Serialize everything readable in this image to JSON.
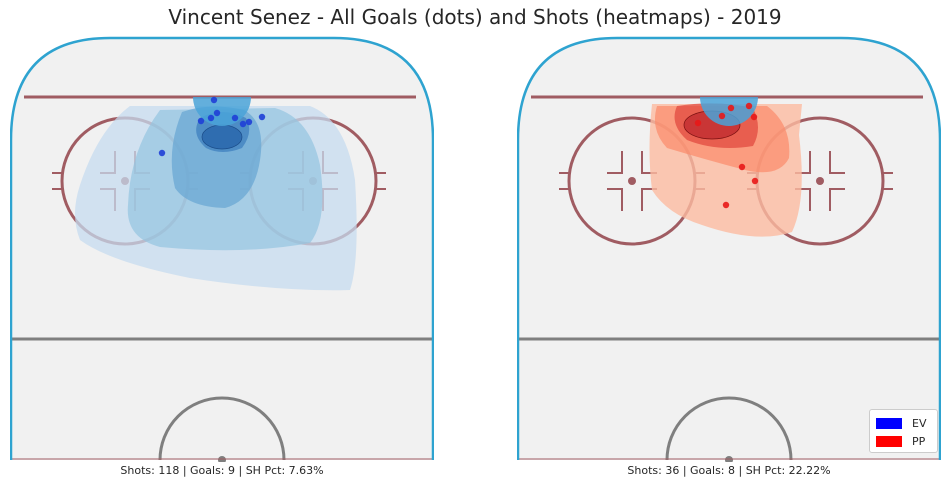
{
  "title": "Vincent Senez - All Goals (dots) and Shots (heatmaps) - 2019",
  "colors": {
    "ice": "#f1f1f1",
    "boards": "#2ea3d0",
    "goal_line": "#a05c62",
    "blue_line": "#7f7f7f",
    "ev": "#0000ff",
    "pp": "#ff0000"
  },
  "legend": [
    {
      "label": "EV",
      "color": "#0000ff"
    },
    {
      "label": "PP",
      "color": "#ff0000"
    }
  ],
  "chart_data": [
    {
      "type": "scatter",
      "panel": "left",
      "strength": "EV",
      "caption": "Shots: 118 | Goals: 9 | SH Pct: 7.63%",
      "shots": 118,
      "goals": 9,
      "sh_pct": 7.63,
      "goal_points": [
        {
          "x": 204,
          "y": 100
        },
        {
          "x": 201,
          "y": 118
        },
        {
          "x": 207,
          "y": 113
        },
        {
          "x": 225,
          "y": 118
        },
        {
          "x": 239,
          "y": 122
        },
        {
          "x": 252,
          "y": 117
        },
        {
          "x": 233,
          "y": 124
        },
        {
          "x": 191,
          "y": 121
        },
        {
          "x": 152,
          "y": 153
        }
      ]
    },
    {
      "type": "scatter",
      "panel": "right",
      "strength": "PP",
      "caption": "Shots: 36 | Goals: 8 | SH Pct: 22.22%",
      "shots": 36,
      "goals": 8,
      "sh_pct": 22.22,
      "goal_points": [
        {
          "x": 214,
          "y": 108
        },
        {
          "x": 205,
          "y": 116
        },
        {
          "x": 232,
          "y": 106
        },
        {
          "x": 237,
          "y": 117
        },
        {
          "x": 181,
          "y": 123
        },
        {
          "x": 225,
          "y": 167
        },
        {
          "x": 238,
          "y": 181
        },
        {
          "x": 209,
          "y": 205
        }
      ]
    }
  ]
}
